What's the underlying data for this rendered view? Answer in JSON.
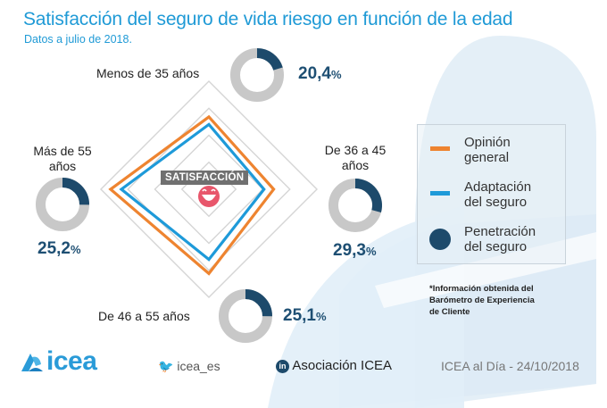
{
  "header": {
    "title": "Satisfacción del seguro de vida riesgo en función de la edad",
    "subtitle": "Datos a julio de 2018."
  },
  "center_badge": "SATISFACCIÓN",
  "center_icon": "smiley-face-icon",
  "segments": [
    {
      "label": "Menos de 35 años",
      "penetration_value": "20,4",
      "penetration_pct": 20.4,
      "pct_sign": "%"
    },
    {
      "label": "De 36 a 45 años",
      "penetration_value": "29,3",
      "penetration_pct": 29.3,
      "pct_sign": "%"
    },
    {
      "label": "De 46 a 55 años",
      "penetration_value": "25,1",
      "penetration_pct": 25.1,
      "pct_sign": "%"
    },
    {
      "label": "Más de 55 años",
      "penetration_value": "25,2",
      "penetration_pct": 25.2,
      "pct_sign": "%"
    }
  ],
  "legend": {
    "items": [
      {
        "label_line1": "Opinión",
        "label_line2": "general",
        "color": "#ee8430",
        "shape": "line"
      },
      {
        "label_line1": "Adaptación",
        "label_line2": "del seguro",
        "color": "#1e9ad9",
        "shape": "line"
      },
      {
        "label_line1": "Penetración",
        "label_line2": "del seguro",
        "color": "#1d4a6b",
        "shape": "circle"
      }
    ]
  },
  "note": {
    "line1": "*Información obtenida del",
    "line2": "Barómetro de Experiencia",
    "line3": "de Cliente"
  },
  "footer": {
    "logo_text": "icea",
    "twitter": "icea_es",
    "linkedin": "Asociación ICEA",
    "date_text": "ICEA al Día - 24/10/2018"
  },
  "colors": {
    "title": "#1f9ad6",
    "orange": "#ee8430",
    "blue": "#1e9ad9",
    "navy": "#1d4a6b",
    "donut_track": "#c8c8c8",
    "grid": "#d5d5d5",
    "smiley": "#e8566b"
  },
  "chart_data": [
    {
      "type": "radar",
      "title": "Satisfacción del seguro de vida riesgo en función de la edad",
      "axes": [
        "Menos de 35 años",
        "De 36 a 45 años",
        "De 46 a 55 años",
        "Más de 55 años"
      ],
      "range": [
        0,
        100
      ],
      "grid_levels": [
        25,
        50,
        75,
        100
      ],
      "series": [
        {
          "name": "Opinión general",
          "values": [
            67,
            60,
            78,
            91
          ]
        },
        {
          "name": "Adaptación del seguro",
          "values": [
            60,
            51,
            65,
            81
          ]
        }
      ],
      "note": "values are estimated; no scale printed"
    },
    {
      "type": "pie",
      "title": "Penetración del seguro",
      "categories": [
        "Menos de 35 años",
        "De 36 a 45 años",
        "De 46 a 55 años",
        "Más de 55 años"
      ],
      "values": [
        20.4,
        29.3,
        25.1,
        25.2
      ],
      "unit": "%"
    }
  ]
}
